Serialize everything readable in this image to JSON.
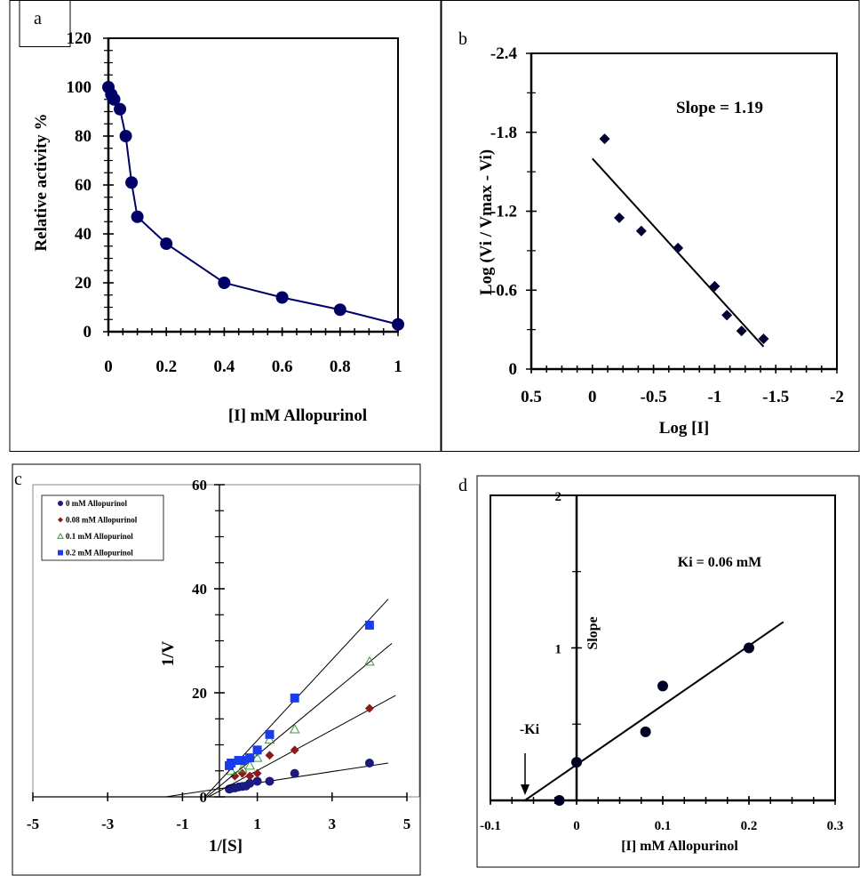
{
  "chart_data": [
    {
      "panel": "a",
      "type": "line",
      "xlabel": "[I] mM Allopurinol",
      "ylabel": "Relative activity %",
      "xlim": [
        0,
        1
      ],
      "ylim": [
        0,
        120
      ],
      "xticks": [
        "0",
        "0.2",
        "0.4",
        "0.6",
        "0.8",
        "1"
      ],
      "yticks": [
        "0",
        "20",
        "40",
        "60",
        "80",
        "100",
        "120"
      ],
      "grid": false,
      "series": [
        {
          "x": [
            0,
            0.01,
            0.02,
            0.04,
            0.06,
            0.08,
            0.1,
            0.2,
            0.4,
            0.6,
            0.8,
            1
          ],
          "y": [
            100,
            97,
            95,
            91,
            80,
            61,
            47,
            36,
            20,
            14,
            9,
            3
          ],
          "color": "#000066"
        }
      ]
    },
    {
      "panel": "b",
      "type": "scatter",
      "xlabel": "Log [I]",
      "ylabel": "Log (Vi / Vmax - Vi)",
      "annotation": "Slope = 1.19",
      "xlim": [
        0.5,
        -2
      ],
      "ylim": [
        0,
        -2.4
      ],
      "xticks": [
        "0.5",
        "0",
        "-0.5",
        "-1",
        "-1.5",
        "-2"
      ],
      "yticks": [
        "0",
        "-0.6",
        "-1.2",
        "-1.8",
        "-2.4"
      ],
      "grid": false,
      "series": [
        {
          "x": [
            -0.1,
            -0.22,
            -0.4,
            -0.7,
            -1.0,
            -1.1,
            -1.22,
            -1.4
          ],
          "y": [
            -1.75,
            -1.15,
            -1.05,
            -0.92,
            -0.63,
            -0.41,
            -0.29,
            -0.23
          ],
          "color": "#000033"
        }
      ],
      "fit": {
        "x": [
          0,
          -1.4
        ],
        "y": [
          -1.6,
          -0.17
        ]
      }
    },
    {
      "panel": "c",
      "type": "scatter",
      "xlabel": "1/[S]",
      "ylabel": "1/V",
      "xlim": [
        -5,
        5
      ],
      "ylim": [
        0,
        60
      ],
      "xticks": [
        "-5",
        "-3",
        "-1",
        "1",
        "3",
        "5"
      ],
      "yticks": [
        "0",
        "20",
        "40",
        "60"
      ],
      "grid": false,
      "legend": "top-left",
      "series": [
        {
          "name": "0 mM Allopurinol",
          "marker": "circle",
          "color": "#1a1a80",
          "x": [
            0.25,
            0.3,
            0.4,
            0.5,
            0.6,
            0.7,
            0.8,
            1,
            1.33,
            2,
            4
          ],
          "y": [
            1.5,
            1.6,
            1.7,
            1.9,
            2.0,
            2.1,
            2.6,
            3.0,
            3.0,
            4.5,
            6.5
          ],
          "fit": {
            "x": [
              -1.45,
              4.5
            ],
            "y": [
              0,
              6.5
            ]
          }
        },
        {
          "name": "0.08 mM Allopurinol",
          "marker": "diamond",
          "color": "#8b1a1a",
          "x": [
            0.4,
            0.6,
            0.8,
            1,
            1.33,
            2,
            4
          ],
          "y": [
            4,
            4.5,
            4,
            4.5,
            8,
            9,
            17
          ],
          "fit": {
            "x": [
              -0.3,
              4.7
            ],
            "y": [
              0,
              19.5
            ]
          }
        },
        {
          "name": "0.1 mM Allopurinol",
          "marker": "triangle",
          "color": "#3a9a3a",
          "x": [
            0.3,
            0.6,
            0.8,
            1,
            1.33,
            2,
            4
          ],
          "y": [
            5,
            5.5,
            6,
            7.5,
            11,
            13,
            26
          ],
          "fit": {
            "x": [
              -0.35,
              4.6
            ],
            "y": [
              0,
              29.5
            ]
          }
        },
        {
          "name": "0.2 mM Allopurinol",
          "marker": "square",
          "color": "#1a3cf0",
          "x": [
            0.25,
            0.3,
            0.5,
            0.6,
            0.8,
            1,
            1.33,
            2,
            4
          ],
          "y": [
            6,
            6.5,
            7,
            7,
            7.5,
            9,
            12,
            19,
            33
          ],
          "fit": {
            "x": [
              -0.4,
              4.5
            ],
            "y": [
              0,
              38
            ]
          }
        }
      ]
    },
    {
      "panel": "d",
      "type": "scatter",
      "xlabel": "[I] mM Allopurinol",
      "ylabel": "Slope",
      "annotation": "Ki = 0.06 mM",
      "arrow_label": "-Ki",
      "xlim": [
        -0.1,
        0.3
      ],
      "ylim": [
        0,
        2
      ],
      "xticks": [
        "-0.1",
        "0",
        "0.1",
        "0.2",
        "0.3"
      ],
      "yticks": [
        "1",
        "2"
      ],
      "grid": false,
      "series": [
        {
          "x": [
            -0.02,
            0,
            0.08,
            0.1,
            0.2
          ],
          "y": [
            0,
            0.25,
            0.45,
            0.75,
            1.0
          ],
          "color": "#000022"
        }
      ],
      "fit": {
        "x": [
          -0.06,
          0.24
        ],
        "y": [
          0,
          1.17
        ]
      }
    }
  ],
  "panel_labels": [
    "a",
    "b",
    "c",
    "d"
  ]
}
